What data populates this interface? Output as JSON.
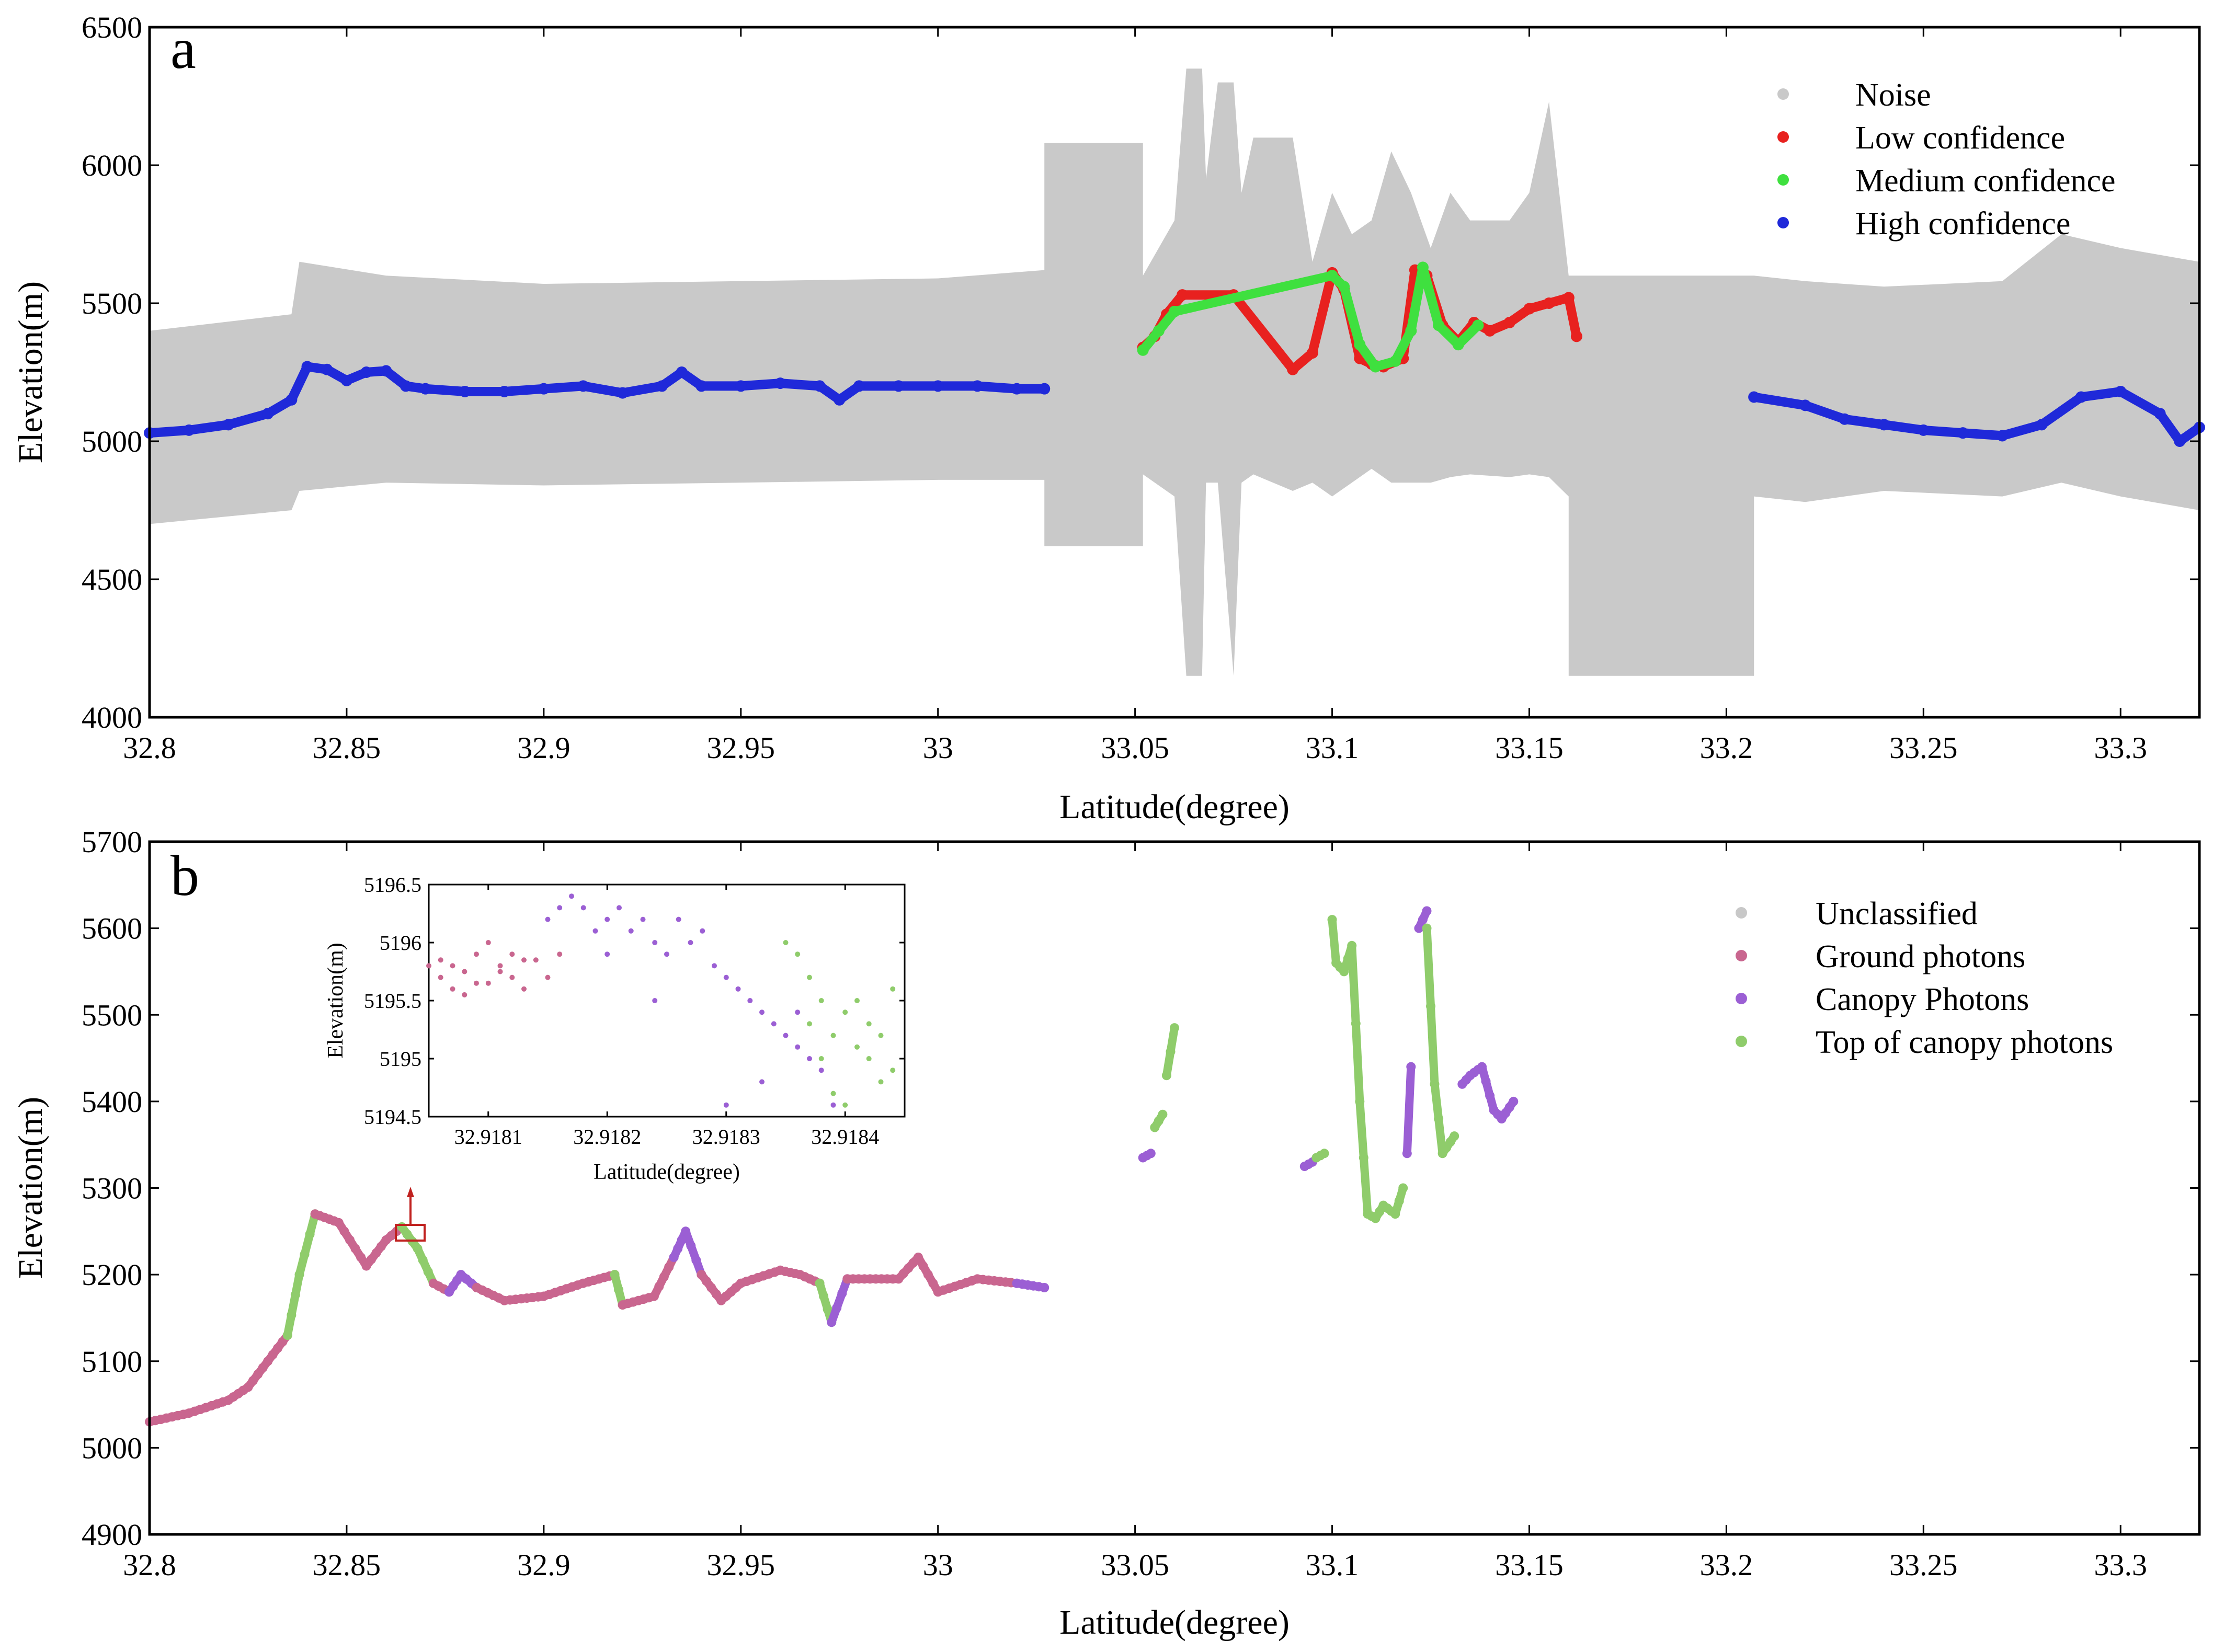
{
  "colors": {
    "noise": "#c9c9c9",
    "low": "#e8211f",
    "medium": "#3fe03f",
    "high": "#1f29d9",
    "unclassified": "#c8c8c8",
    "ground": "#c9668f",
    "canopy": "#9b5fd4",
    "top": "#8fcc6b",
    "marker": "#c0211f"
  },
  "chart_data": [
    {
      "id": "a",
      "type": "scatter",
      "panel_label": "a",
      "xlabel": "Latitude(degree)",
      "ylabel": "Elevation(m)",
      "xlim": [
        32.8,
        33.32
      ],
      "ylim": [
        4000,
        6500
      ],
      "xticks": [
        32.8,
        32.85,
        32.9,
        32.95,
        33,
        33.05,
        33.1,
        33.15,
        33.2,
        33.25,
        33.3
      ],
      "xtick_labels": [
        "32.8",
        "32.85",
        "32.9",
        "32.95",
        "33",
        "33.05",
        "33.1",
        "33.15",
        "33.2",
        "33.25",
        "33.3"
      ],
      "yticks": [
        4000,
        4500,
        5000,
        5500,
        6000,
        6500
      ],
      "ytick_labels": [
        "4000",
        "4500",
        "5000",
        "5500",
        "6000",
        "6500"
      ],
      "legend_position": "top-right",
      "legend": [
        "Noise",
        "Low confidence",
        "Medium confidence",
        "High confidence"
      ],
      "noise_band": [
        [
          32.8,
          4700,
          5400
        ],
        [
          32.836,
          4750,
          5460
        ],
        [
          32.838,
          4820,
          5650
        ],
        [
          32.86,
          4850,
          5600
        ],
        [
          32.9,
          4840,
          5570
        ],
        [
          33.0,
          4860,
          5590
        ],
        [
          33.027,
          4860,
          5620
        ],
        [
          33.027,
          4620,
          6080
        ],
        [
          33.052,
          4620,
          6080
        ],
        [
          33.052,
          4880,
          5600
        ],
        [
          33.06,
          4800,
          5800
        ],
        [
          33.063,
          4150,
          6350
        ],
        [
          33.067,
          4150,
          6350
        ],
        [
          33.068,
          4850,
          5950
        ],
        [
          33.071,
          4850,
          6300
        ],
        [
          33.075,
          4150,
          6300
        ],
        [
          33.077,
          4850,
          5900
        ],
        [
          33.08,
          4880,
          6100
        ],
        [
          33.09,
          4820,
          6100
        ],
        [
          33.095,
          4850,
          5650
        ],
        [
          33.1,
          4800,
          5900
        ],
        [
          33.105,
          4850,
          5750
        ],
        [
          33.11,
          4900,
          5800
        ],
        [
          33.115,
          4850,
          6050
        ],
        [
          33.12,
          4850,
          5900
        ],
        [
          33.125,
          4850,
          5700
        ],
        [
          33.13,
          4870,
          5900
        ],
        [
          33.135,
          4880,
          5800
        ],
        [
          33.145,
          4870,
          5800
        ],
        [
          33.15,
          4880,
          5900
        ],
        [
          33.155,
          4870,
          6230
        ],
        [
          33.16,
          4800,
          5600
        ],
        [
          33.16,
          4150,
          5600
        ],
        [
          33.207,
          4150,
          5600
        ],
        [
          33.207,
          4800,
          5600
        ],
        [
          33.22,
          4780,
          5580
        ],
        [
          33.24,
          4820,
          5560
        ],
        [
          33.27,
          4800,
          5580
        ],
        [
          33.285,
          4850,
          5750
        ],
        [
          33.3,
          4800,
          5700
        ],
        [
          33.32,
          4750,
          5650
        ]
      ],
      "series": [
        {
          "name": "High confidence",
          "x": [
            32.8,
            32.81,
            32.82,
            32.83,
            32.836,
            32.84,
            32.845,
            32.85,
            32.855,
            32.86,
            32.865,
            32.87,
            32.88,
            32.89,
            32.9,
            32.91,
            32.92,
            32.93,
            32.935,
            32.94,
            32.95,
            32.96,
            32.97,
            32.975,
            32.98,
            32.99,
            33.0,
            33.01,
            33.02,
            33.027
          ],
          "y": [
            5030,
            5040,
            5060,
            5100,
            5150,
            5270,
            5260,
            5220,
            5250,
            5255,
            5200,
            5190,
            5180,
            5180,
            5190,
            5200,
            5175,
            5200,
            5250,
            5200,
            5200,
            5210,
            5200,
            5150,
            5200,
            5200,
            5200,
            5200,
            5190,
            5190
          ]
        },
        {
          "name": "High confidence",
          "x": [
            33.207,
            33.22,
            33.23,
            33.24,
            33.25,
            33.26,
            33.27,
            33.28,
            33.29,
            33.3,
            33.31,
            33.315,
            33.32
          ],
          "y": [
            5160,
            5130,
            5080,
            5060,
            5040,
            5030,
            5020,
            5060,
            5160,
            5180,
            5100,
            5000,
            5050
          ]
        },
        {
          "name": "Low confidence",
          "x": [
            33.052,
            33.055,
            33.058,
            33.062,
            33.075,
            33.09,
            33.095,
            33.1,
            33.103,
            33.107,
            33.11,
            33.113,
            33.118,
            33.121,
            33.124,
            33.128,
            33.132,
            33.136,
            33.14,
            33.145,
            33.15,
            33.155,
            33.16,
            33.162
          ],
          "y": [
            5340,
            5380,
            5460,
            5530,
            5530,
            5260,
            5320,
            5610,
            5550,
            5300,
            5280,
            5270,
            5300,
            5620,
            5600,
            5420,
            5360,
            5430,
            5400,
            5430,
            5480,
            5500,
            5520,
            5380
          ]
        },
        {
          "name": "Medium confidence",
          "x": [
            33.052,
            33.056,
            33.06,
            33.1,
            33.103,
            33.107,
            33.111,
            33.116,
            33.12,
            33.123,
            33.127,
            33.132,
            33.137
          ],
          "y": [
            5330,
            5400,
            5470,
            5600,
            5560,
            5350,
            5270,
            5290,
            5400,
            5630,
            5420,
            5350,
            5420
          ]
        }
      ]
    },
    {
      "id": "b",
      "type": "scatter",
      "panel_label": "b",
      "xlabel": "Latitude(degree)",
      "ylabel": "Elevation(m)",
      "xlim": [
        32.8,
        33.32
      ],
      "ylim": [
        4900,
        5700
      ],
      "xticks": [
        32.8,
        32.85,
        32.9,
        32.95,
        33,
        33.05,
        33.1,
        33.15,
        33.2,
        33.25,
        33.3
      ],
      "xtick_labels": [
        "32.8",
        "32.85",
        "32.9",
        "32.95",
        "33",
        "33.05",
        "33.1",
        "33.15",
        "33.2",
        "33.25",
        "33.3"
      ],
      "yticks": [
        4900,
        5000,
        5100,
        5200,
        5300,
        5400,
        5500,
        5600,
        5700
      ],
      "ytick_labels": [
        "4900",
        "5000",
        "5100",
        "5200",
        "5300",
        "5400",
        "5500",
        "5600",
        "5700"
      ],
      "legend_position": "top-right",
      "legend": [
        "Unclassified",
        "Ground photons",
        "Canopy Photons",
        "Top of canopy photons"
      ],
      "segments": [
        {
          "cls": "ground",
          "x": [
            32.8,
            32.81,
            32.82,
            32.825,
            32.83,
            32.835
          ],
          "y": [
            5030,
            5040,
            5055,
            5070,
            5100,
            5130
          ]
        },
        {
          "cls": "top",
          "x": [
            32.835,
            32.838,
            32.842
          ],
          "y": [
            5130,
            5200,
            5270
          ]
        },
        {
          "cls": "ground",
          "x": [
            32.842,
            32.848,
            32.855,
            32.86,
            32.864
          ],
          "y": [
            5270,
            5260,
            5210,
            5240,
            5255
          ]
        },
        {
          "cls": "top",
          "x": [
            32.864,
            32.868,
            32.872
          ],
          "y": [
            5255,
            5230,
            5190
          ]
        },
        {
          "cls": "ground",
          "x": [
            32.872,
            32.876
          ],
          "y": [
            5190,
            5180
          ]
        },
        {
          "cls": "canopy",
          "x": [
            32.876,
            32.879,
            32.883
          ],
          "y": [
            5180,
            5200,
            5185
          ]
        },
        {
          "cls": "ground",
          "x": [
            32.883,
            32.89,
            32.9,
            32.91,
            32.918
          ],
          "y": [
            5185,
            5170,
            5175,
            5190,
            5200
          ]
        },
        {
          "cls": "top",
          "x": [
            32.918,
            32.92
          ],
          "y": [
            5200,
            5165
          ]
        },
        {
          "cls": "ground",
          "x": [
            32.92,
            32.928,
            32.933
          ],
          "y": [
            5165,
            5175,
            5220
          ]
        },
        {
          "cls": "canopy",
          "x": [
            32.933,
            32.936,
            32.94
          ],
          "y": [
            5220,
            5250,
            5200
          ]
        },
        {
          "cls": "ground",
          "x": [
            32.94,
            32.945,
            32.95,
            32.96,
            32.965,
            32.97
          ],
          "y": [
            5200,
            5170,
            5190,
            5205,
            5200,
            5190
          ]
        },
        {
          "cls": "top",
          "x": [
            32.97,
            32.973
          ],
          "y": [
            5190,
            5145
          ]
        },
        {
          "cls": "canopy",
          "x": [
            32.973,
            32.977
          ],
          "y": [
            5145,
            5195
          ]
        },
        {
          "cls": "ground",
          "x": [
            32.977,
            32.99,
            32.995,
            33.0,
            33.01,
            33.02
          ],
          "y": [
            5195,
            5195,
            5220,
            5180,
            5195,
            5190
          ]
        },
        {
          "cls": "canopy",
          "x": [
            33.02,
            33.027
          ],
          "y": [
            5190,
            5185
          ]
        },
        {
          "cls": "canopy",
          "x": [
            33.052,
            33.054
          ],
          "y": [
            5335,
            5340
          ]
        },
        {
          "cls": "top",
          "x": [
            33.055,
            33.057
          ],
          "y": [
            5370,
            5385
          ]
        },
        {
          "cls": "top",
          "x": [
            33.058,
            33.06
          ],
          "y": [
            5430,
            5485
          ]
        },
        {
          "cls": "canopy",
          "x": [
            33.093,
            33.095
          ],
          "y": [
            5325,
            5330
          ]
        },
        {
          "cls": "top",
          "x": [
            33.096,
            33.098
          ],
          "y": [
            5335,
            5340
          ]
        },
        {
          "cls": "top",
          "x": [
            33.1,
            33.101,
            33.103,
            33.105,
            33.107,
            33.109,
            33.111,
            33.113,
            33.116,
            33.118
          ],
          "y": [
            5610,
            5560,
            5550,
            5580,
            5400,
            5270,
            5265,
            5280,
            5270,
            5300
          ]
        },
        {
          "cls": "canopy",
          "x": [
            33.119,
            33.12
          ],
          "y": [
            5340,
            5440
          ]
        },
        {
          "cls": "canopy",
          "x": [
            33.122,
            33.124
          ],
          "y": [
            5600,
            5620
          ]
        },
        {
          "cls": "top",
          "x": [
            33.124,
            33.126,
            33.128,
            33.131
          ],
          "y": [
            5600,
            5420,
            5340,
            5360
          ]
        },
        {
          "cls": "canopy",
          "x": [
            33.133,
            33.135,
            33.138,
            33.141,
            33.143,
            33.146
          ],
          "y": [
            5420,
            5430,
            5440,
            5390,
            5380,
            5400
          ]
        }
      ]
    },
    {
      "id": "b-inset",
      "type": "scatter",
      "xlabel": "Latitude(degree)",
      "ylabel": "Elevation(m)",
      "xlim": [
        32.91805,
        32.91845
      ],
      "ylim": [
        5194.5,
        5196.5
      ],
      "xticks": [
        32.9181,
        32.9182,
        32.9183,
        32.9184
      ],
      "xtick_labels": [
        "32.9181",
        "32.9182",
        "32.9183",
        "32.9184"
      ],
      "yticks": [
        5194.5,
        5195,
        5195.5,
        5196,
        5196.5
      ],
      "ytick_labels": [
        "5194.5",
        "5195",
        "5195.5",
        "5196",
        "5196.5"
      ],
      "series": [
        {
          "name": "Ground photons",
          "x": [
            32.91806,
            32.91807,
            32.91808,
            32.91809,
            32.9181,
            32.91811,
            32.91812,
            32.91813,
            32.91807,
            32.91809,
            32.91811,
            32.91813,
            32.91806,
            32.9181,
            32.91812,
            32.91814,
            32.91808,
            32.91816,
            32.91805,
            32.91815
          ],
          "y": [
            5195.7,
            5195.8,
            5195.75,
            5195.9,
            5195.65,
            5195.8,
            5195.7,
            5195.85,
            5195.6,
            5195.65,
            5195.75,
            5195.6,
            5195.85,
            5196.0,
            5195.9,
            5195.85,
            5195.55,
            5195.9,
            5195.8,
            5195.7
          ]
        },
        {
          "name": "Canopy Photons",
          "x": [
            32.91815,
            32.91816,
            32.91817,
            32.91818,
            32.91819,
            32.9182,
            32.91821,
            32.91822,
            32.91823,
            32.91824,
            32.91825,
            32.91826,
            32.91827,
            32.91828,
            32.91829,
            32.9183,
            32.91831,
            32.91832,
            32.91833,
            32.91834,
            32.91835,
            32.91836,
            32.91837,
            32.91838,
            32.9183,
            32.91833,
            32.91836,
            32.91839,
            32.9182,
            32.91824
          ],
          "y": [
            5196.2,
            5196.3,
            5196.4,
            5196.3,
            5196.1,
            5196.2,
            5196.3,
            5196.1,
            5196.2,
            5196.0,
            5195.9,
            5196.2,
            5196.0,
            5196.1,
            5195.8,
            5195.7,
            5195.6,
            5195.5,
            5195.4,
            5195.3,
            5195.2,
            5195.4,
            5195.0,
            5194.9,
            5194.6,
            5194.8,
            5195.1,
            5194.6,
            5195.9,
            5195.5
          ]
        },
        {
          "name": "Top of canopy photons",
          "x": [
            32.91835,
            32.91836,
            32.91837,
            32.91838,
            32.91839,
            32.9184,
            32.91841,
            32.91842,
            32.91843,
            32.91844,
            32.91837,
            32.91839,
            32.91841,
            32.91843,
            32.91844,
            32.9184,
            32.91842,
            32.91838
          ],
          "y": [
            5196.0,
            5195.9,
            5195.7,
            5195.5,
            5195.2,
            5195.4,
            5195.1,
            5195.0,
            5194.8,
            5195.6,
            5195.3,
            5194.7,
            5195.5,
            5195.2,
            5194.9,
            5194.6,
            5195.3,
            5195.0
          ]
        }
      ]
    }
  ]
}
